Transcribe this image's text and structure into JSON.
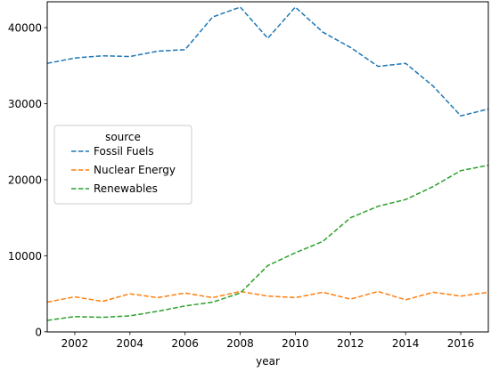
{
  "chart_data": {
    "type": "line",
    "title": "",
    "xlabel": "year",
    "ylabel": "",
    "x": [
      2001,
      2002,
      2003,
      2004,
      2005,
      2006,
      2007,
      2008,
      2009,
      2010,
      2011,
      2012,
      2013,
      2014,
      2015,
      2016,
      2017
    ],
    "xlim": [
      2001,
      2017
    ],
    "ylim": [
      -20,
      43400
    ],
    "xticks": [
      2002,
      2004,
      2006,
      2008,
      2010,
      2012,
      2014,
      2016
    ],
    "yticks": [
      0,
      10000,
      20000,
      30000,
      40000
    ],
    "grid": false,
    "line_style": "dashed",
    "legend": {
      "title": "source",
      "placement": "center-left"
    },
    "series": [
      {
        "name": "Fossil Fuels",
        "color": "#1f77b4",
        "values": [
          35300,
          36000,
          36300,
          36200,
          36900,
          37100,
          41400,
          42700,
          38600,
          42700,
          39400,
          37400,
          34900,
          35300,
          32300,
          28400,
          29300
        ]
      },
      {
        "name": "Nuclear Energy",
        "color": "#ff7f0e",
        "values": [
          3900,
          4600,
          4000,
          5000,
          4500,
          5100,
          4500,
          5300,
          4700,
          4500,
          5200,
          4300,
          5300,
          4200,
          5200,
          4700,
          5200
        ]
      },
      {
        "name": "Renewables",
        "color": "#2ca02c",
        "values": [
          1500,
          2000,
          1900,
          2100,
          2700,
          3400,
          3900,
          5100,
          8700,
          10400,
          11900,
          15000,
          16500,
          17400,
          19100,
          21200,
          21900
        ]
      }
    ]
  }
}
